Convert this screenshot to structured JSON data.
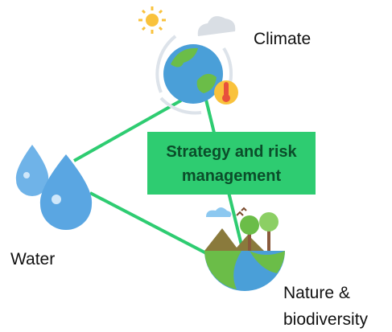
{
  "center": {
    "lines": [
      "Strategy and risk",
      "management"
    ]
  },
  "nodes": [
    {
      "label": [
        "Climate"
      ]
    },
    {
      "label": [
        "Water"
      ]
    },
    {
      "label": [
        "Nature &",
        "biodiversity"
      ]
    }
  ]
}
